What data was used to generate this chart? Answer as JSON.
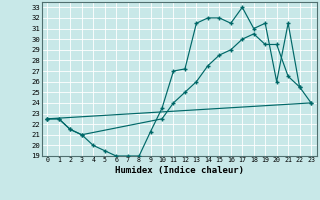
{
  "xlabel": "Humidex (Indice chaleur)",
  "bg_color": "#c8e8e8",
  "grid_color": "#ffffff",
  "line_color": "#006868",
  "xlim": [
    -0.5,
    23.5
  ],
  "ylim": [
    19,
    33.5
  ],
  "yticks": [
    19,
    20,
    21,
    22,
    23,
    24,
    25,
    26,
    27,
    28,
    29,
    30,
    31,
    32,
    33
  ],
  "xticks": [
    0,
    1,
    2,
    3,
    4,
    5,
    6,
    7,
    8,
    9,
    10,
    11,
    12,
    13,
    14,
    15,
    16,
    17,
    18,
    19,
    20,
    21,
    22,
    23
  ],
  "line1_x": [
    0,
    1,
    2,
    3,
    4,
    5,
    6,
    7,
    8,
    9,
    10,
    11,
    12,
    13,
    14,
    15,
    16,
    17,
    18,
    19,
    20,
    21,
    22
  ],
  "line1_y": [
    22.5,
    22.5,
    21.5,
    21.0,
    20.0,
    19.5,
    19.0,
    19.0,
    19.0,
    21.3,
    23.5,
    27.0,
    27.2,
    31.5,
    32.0,
    32.0,
    31.5,
    33.0,
    31.0,
    31.5,
    26.0,
    31.5,
    25.5
  ],
  "line2_x": [
    0,
    1,
    2,
    3,
    10,
    11,
    12,
    13,
    14,
    15,
    16,
    17,
    18,
    19,
    20,
    21,
    22,
    23
  ],
  "line2_y": [
    22.5,
    22.5,
    21.5,
    21.0,
    22.5,
    24.0,
    25.0,
    26.0,
    27.5,
    28.5,
    29.0,
    30.0,
    30.5,
    29.5,
    29.5,
    26.5,
    25.5,
    24.0
  ],
  "line3_x": [
    0,
    23
  ],
  "line3_y": [
    22.5,
    24.0
  ]
}
